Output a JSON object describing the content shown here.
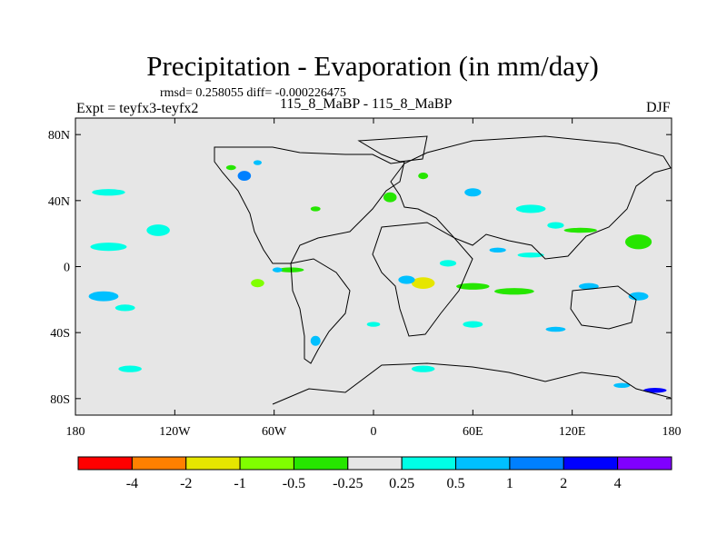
{
  "title": "Precipitation - Evaporation (in mm/day)",
  "stats": "rmsd= 0.258055 diff= -0.000226475",
  "left_label": "Expt = teyfx3-teyfx2",
  "center_label": "115_8_MaBP - 115_8_MaBP",
  "right_label": "DJF",
  "chart_data": {
    "type": "heatmap",
    "title": "Precipitation - Evaporation (in mm/day)",
    "xlabel": "",
    "ylabel": "",
    "xlim": [
      -180,
      180
    ],
    "ylim": [
      -90,
      90
    ],
    "x_ticks": [
      {
        "value": -180,
        "label": "180"
      },
      {
        "value": -120,
        "label": "120W"
      },
      {
        "value": -60,
        "label": "60W"
      },
      {
        "value": 0,
        "label": "0"
      },
      {
        "value": 60,
        "label": "60E"
      },
      {
        "value": 120,
        "label": "120E"
      },
      {
        "value": 180,
        "label": "180"
      }
    ],
    "y_ticks": [
      {
        "value": 80,
        "label": "80N"
      },
      {
        "value": 40,
        "label": "40N"
      },
      {
        "value": 0,
        "label": "0"
      },
      {
        "value": -40,
        "label": "40S"
      },
      {
        "value": -80,
        "label": "80S"
      }
    ],
    "background_color": "#e6e6e6",
    "colorbar": {
      "labels": [
        "-4",
        "-2",
        "-1",
        "-0.5",
        "-0.25",
        "0.25",
        "0.5",
        "1",
        "2",
        "4"
      ],
      "colors": [
        "#ff0000",
        "#ff8000",
        "#e6e600",
        "#80ff00",
        "#26e600",
        "#e6e6e6",
        "#00ffe6",
        "#00c0ff",
        "#0080ff",
        "#0000ff",
        "#8000ff"
      ]
    },
    "regions": [
      {
        "lon": -160,
        "lat": 12,
        "w": 22,
        "h": 5,
        "level": "0.25 to 0.5"
      },
      {
        "lon": -163,
        "lat": -18,
        "w": 18,
        "h": 6,
        "level": "0.5 to 1"
      },
      {
        "lon": -150,
        "lat": -25,
        "w": 12,
        "h": 4,
        "level": "0.25 to 0.5"
      },
      {
        "lon": -147,
        "lat": -62,
        "w": 14,
        "h": 4,
        "level": "0.25 to 0.5"
      },
      {
        "lon": -130,
        "lat": 22,
        "w": 14,
        "h": 7,
        "level": "0.25 to 0.5"
      },
      {
        "lon": -160,
        "lat": 45,
        "w": 20,
        "h": 4,
        "level": "0.25 to 0.5"
      },
      {
        "lon": -78,
        "lat": 55,
        "w": 8,
        "h": 6,
        "level": "1 to 2"
      },
      {
        "lon": -86,
        "lat": 60,
        "w": 6,
        "h": 3,
        "level": "-0.5 to -0.25"
      },
      {
        "lon": -70,
        "lat": 63,
        "w": 5,
        "h": 3,
        "level": "0.5 to 1"
      },
      {
        "lon": -35,
        "lat": 35,
        "w": 6,
        "h": 3,
        "level": "-0.5 to -0.25"
      },
      {
        "lon": -50,
        "lat": -2,
        "w": 16,
        "h": 3,
        "level": "-0.5 to -0.25"
      },
      {
        "lon": -58,
        "lat": -2,
        "w": 6,
        "h": 3,
        "level": "0.5 to 1"
      },
      {
        "lon": -70,
        "lat": -10,
        "w": 8,
        "h": 5,
        "level": "-1 to -0.5"
      },
      {
        "lon": 30,
        "lat": -10,
        "w": 14,
        "h": 7,
        "level": "-2 to -1"
      },
      {
        "lon": 20,
        "lat": -8,
        "w": 10,
        "h": 5,
        "level": "0.5 to 1"
      },
      {
        "lon": 45,
        "lat": 2,
        "w": 10,
        "h": 4,
        "level": "0.25 to 0.5"
      },
      {
        "lon": 60,
        "lat": -12,
        "w": 20,
        "h": 4,
        "level": "-0.5 to -0.25"
      },
      {
        "lon": 95,
        "lat": 7,
        "w": 16,
        "h": 3,
        "level": "0.25 to 0.5"
      },
      {
        "lon": 75,
        "lat": 10,
        "w": 10,
        "h": 3,
        "level": "0.5 to 1"
      },
      {
        "lon": 85,
        "lat": -15,
        "w": 24,
        "h": 4,
        "level": "-0.5 to -0.25"
      },
      {
        "lon": 130,
        "lat": -12,
        "w": 12,
        "h": 4,
        "level": "0.5 to 1"
      },
      {
        "lon": 160,
        "lat": -18,
        "w": 12,
        "h": 5,
        "level": "0.5 to 1"
      },
      {
        "lon": 160,
        "lat": 15,
        "w": 16,
        "h": 9,
        "level": "-0.5 to -0.25"
      },
      {
        "lon": 125,
        "lat": 22,
        "w": 20,
        "h": 3,
        "level": "-0.5 to -0.25"
      },
      {
        "lon": 60,
        "lat": 45,
        "w": 10,
        "h": 5,
        "level": "0.5 to 1"
      },
      {
        "lon": 10,
        "lat": 42,
        "w": 8,
        "h": 6,
        "level": "-0.5 to -0.25"
      },
      {
        "lon": 30,
        "lat": 55,
        "w": 6,
        "h": 4,
        "level": "-0.5 to -0.25"
      },
      {
        "lon": 170,
        "lat": -75,
        "w": 14,
        "h": 3,
        "level": "2 to 4"
      },
      {
        "lon": 150,
        "lat": -72,
        "w": 10,
        "h": 3,
        "level": "0.5 to 1"
      },
      {
        "lon": 30,
        "lat": -62,
        "w": 14,
        "h": 4,
        "level": "0.25 to 0.5"
      },
      {
        "lon": 60,
        "lat": -35,
        "w": 12,
        "h": 4,
        "level": "0.25 to 0.5"
      },
      {
        "lon": 0,
        "lat": -35,
        "w": 8,
        "h": 3,
        "level": "0.25 to 0.5"
      },
      {
        "lon": -35,
        "lat": -45,
        "w": 6,
        "h": 6,
        "level": "0.5 to 1"
      },
      {
        "lon": 110,
        "lat": -38,
        "w": 12,
        "h": 3,
        "level": "0.5 to 1"
      },
      {
        "lon": 95,
        "lat": 35,
        "w": 18,
        "h": 5,
        "level": "0.25 to 0.5"
      },
      {
        "lon": 110,
        "lat": 25,
        "w": 10,
        "h": 4,
        "level": "0.25 to 0.5"
      }
    ]
  }
}
